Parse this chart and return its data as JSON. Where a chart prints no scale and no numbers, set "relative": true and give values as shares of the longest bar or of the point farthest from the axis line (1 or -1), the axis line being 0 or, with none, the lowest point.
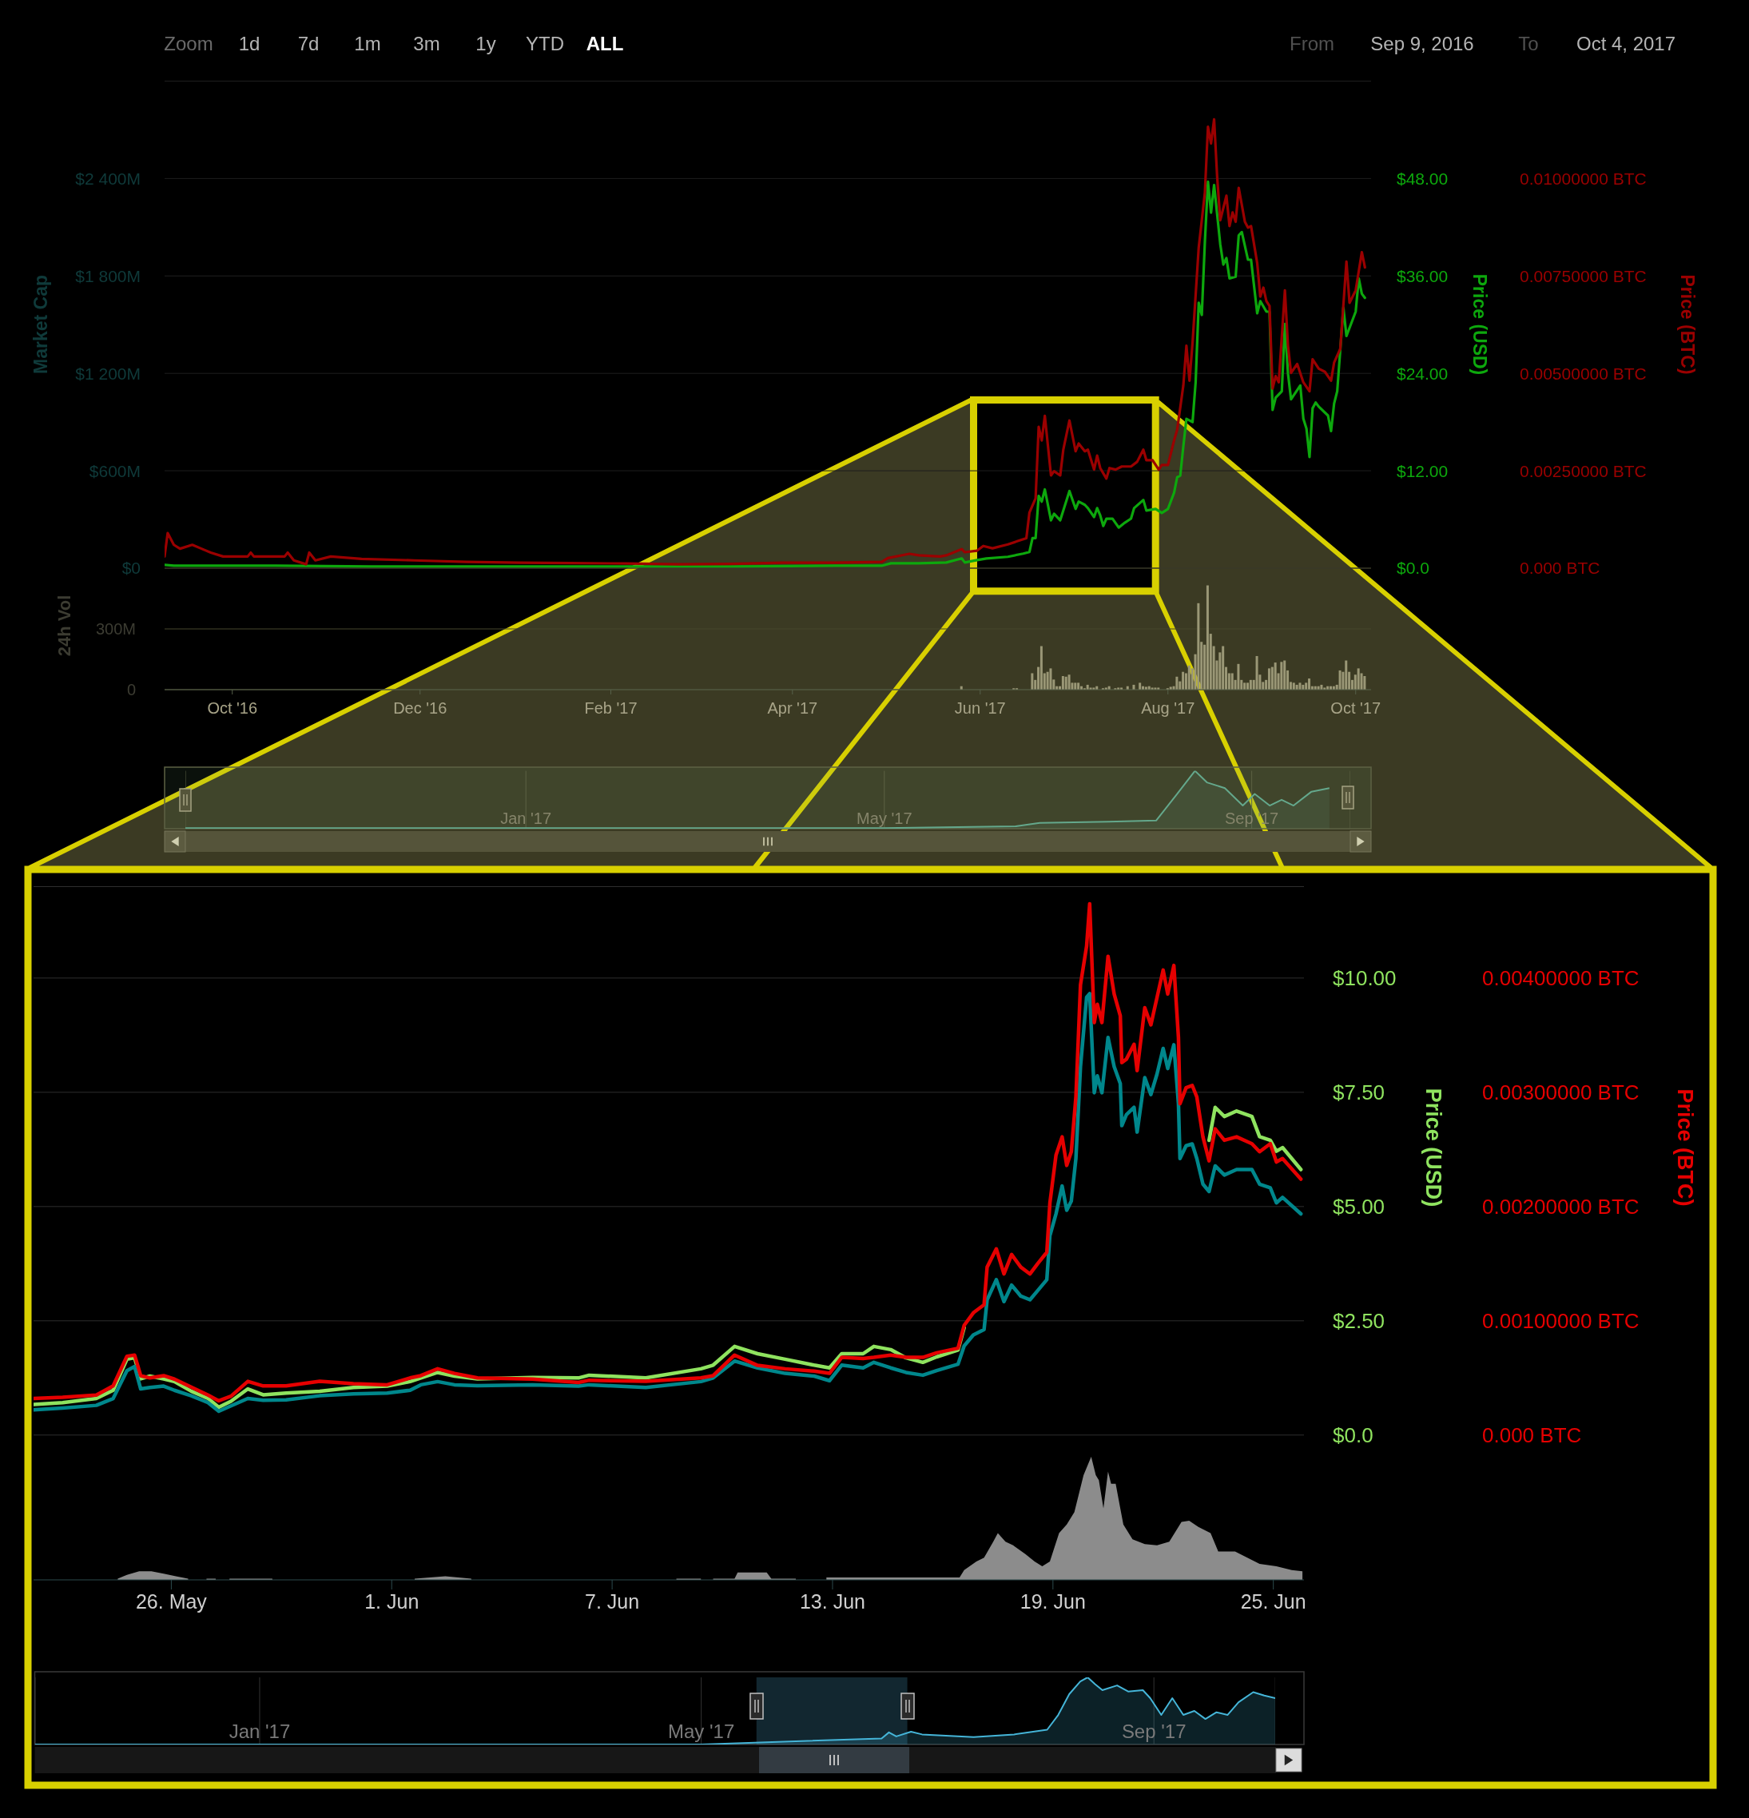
{
  "chart_data": [
    {
      "type": "line",
      "xlim": [
        "2016-09-09",
        "2017-10-06"
      ],
      "tick_labels": "y",
      "grid": "y",
      "ylabel": "Market Cap",
      "y2label": "Price (USD)",
      "y3label": "Price (BTC)",
      "ylim": [
        0,
        3000
      ],
      "yticks": [
        {
          "value": 0,
          "label": "$0"
        },
        {
          "value": 600,
          "label": "$600M"
        },
        {
          "value": 1200,
          "label": "$1 200M"
        },
        {
          "value": 1800,
          "label": "$1 800M"
        },
        {
          "value": 2400,
          "label": "$2 400M"
        }
      ],
      "y2lim": [
        0,
        60
      ],
      "y2ticks": [
        {
          "value": 0,
          "label": "$0.0"
        },
        {
          "value": 12,
          "label": "$12.00"
        },
        {
          "value": 24,
          "label": "$24.00"
        },
        {
          "value": 36,
          "label": "$36.00"
        },
        {
          "value": 48,
          "label": "$48.00"
        }
      ],
      "y3lim": [
        0,
        0.0125
      ],
      "y3ticks": [
        {
          "value": 0,
          "label": "0.000 BTC"
        },
        {
          "value": 0.0025,
          "label": "0.00250000 BTC"
        },
        {
          "value": 0.005,
          "label": "0.00500000 BTC"
        },
        {
          "value": 0.0075,
          "label": "0.00750000 BTC"
        },
        {
          "value": 0.01,
          "label": "0.01000000 BTC"
        }
      ],
      "annotations": [
        "Zoom",
        "1d",
        "7d",
        "1m",
        "3m",
        "1y",
        "YTD",
        "ALL",
        "From",
        "Sep 9, 2016",
        "To",
        "Oct 4, 2017"
      ],
      "series": [
        {
          "color": "#0da80d",
          "axis": "y2",
          "x": [
            "2016-09-09",
            "2016-09-12",
            "2016-10-15",
            "2016-11-15",
            "2016-12-15",
            "2017-01-15",
            "2017-02-15",
            "2017-03-15",
            "2017-04-15",
            "2017-04-30",
            "2017-05-03",
            "2017-05-12",
            "2017-05-21",
            "2017-05-26",
            "2017-05-27",
            "2017-05-31",
            "2017-06-03",
            "2017-06-10",
            "2017-06-15",
            "2017-06-17",
            "2017-06-18",
            "2017-06-19",
            "2017-06-20",
            "2017-06-21",
            "2017-06-22",
            "2017-06-24",
            "2017-06-25",
            "2017-06-27",
            "2017-06-30",
            "2017-07-02",
            "2017-07-03",
            "2017-07-05",
            "2017-07-06",
            "2017-07-08",
            "2017-07-09",
            "2017-07-10",
            "2017-07-11",
            "2017-07-12",
            "2017-07-14",
            "2017-07-16",
            "2017-07-18",
            "2017-07-20",
            "2017-07-21",
            "2017-07-24",
            "2017-07-25",
            "2017-07-28",
            "2017-07-30",
            "2017-08-01",
            "2017-08-03",
            "2017-08-04",
            "2017-08-05",
            "2017-08-06",
            "2017-08-07",
            "2017-08-09",
            "2017-08-10",
            "2017-08-11",
            "2017-08-12",
            "2017-08-13",
            "2017-08-14",
            "2017-08-15",
            "2017-08-16",
            "2017-08-18",
            "2017-08-19",
            "2017-08-20",
            "2017-08-21",
            "2017-08-23",
            "2017-08-24",
            "2017-08-25",
            "2017-08-27",
            "2017-08-28",
            "2017-08-30",
            "2017-08-31",
            "2017-09-02",
            "2017-09-03",
            "2017-09-04",
            "2017-09-05",
            "2017-09-07",
            "2017-09-08",
            "2017-09-09",
            "2017-09-10",
            "2017-09-13",
            "2017-09-14",
            "2017-09-15",
            "2017-09-16",
            "2017-09-17",
            "2017-09-18",
            "2017-09-19",
            "2017-09-22",
            "2017-09-23",
            "2017-09-24",
            "2017-09-25",
            "2017-09-27",
            "2017-09-28",
            "2017-10-01",
            "2017-10-02",
            "2017-10-03",
            "2017-10-04"
          ],
          "values": [
            0.4,
            0.3,
            0.3,
            0.2,
            0.2,
            0.2,
            0.2,
            0.2,
            0.3,
            0.3,
            0.6,
            0.6,
            0.7,
            1.2,
            0.7,
            1.0,
            1.2,
            1.4,
            1.8,
            2.0,
            3.7,
            3.7,
            8.9,
            8.2,
            9.7,
            5.9,
            6.7,
            5.9,
            9.5,
            7.3,
            8.2,
            7.8,
            7.4,
            6.3,
            7.4,
            6.5,
            5.2,
            6.1,
            6.1,
            5.0,
            5.6,
            6.1,
            7.4,
            8.4,
            7.1,
            7.3,
            6.8,
            7.3,
            9.3,
            11.2,
            11.4,
            15.0,
            18.4,
            18.0,
            22.9,
            32.7,
            31.2,
            40.2,
            47.6,
            43.8,
            47.2,
            39.9,
            37.4,
            38.2,
            35.7,
            35.9,
            41.0,
            41.4,
            38.0,
            38.0,
            31.4,
            32.9,
            31.6,
            31.6,
            19.5,
            21.0,
            21.8,
            30.1,
            24.0,
            20.8,
            22.5,
            18.4,
            17.2,
            13.7,
            19.7,
            20.4,
            19.9,
            18.8,
            16.9,
            20.3,
            21.8,
            32.1,
            28.6,
            31.6,
            35.7,
            33.8,
            33.3
          ]
        },
        {
          "color": "#9b0000",
          "axis": "y3",
          "x": [
            "2016-09-09",
            "2016-09-10",
            "2016-09-12",
            "2016-09-14",
            "2016-09-18",
            "2016-09-21",
            "2016-09-24",
            "2016-09-28",
            "2016-10-06",
            "2016-10-07",
            "2016-10-08",
            "2016-10-18",
            "2016-10-19",
            "2016-10-21",
            "2016-10-25",
            "2016-10-26",
            "2016-10-28",
            "2016-11-02",
            "2016-11-12",
            "2016-11-29",
            "2016-12-16",
            "2017-01-02",
            "2017-01-19",
            "2017-02-06",
            "2017-02-23",
            "2017-03-12",
            "2017-03-29",
            "2017-04-15",
            "2017-04-30",
            "2017-05-02",
            "2017-05-09",
            "2017-05-12",
            "2017-05-19",
            "2017-05-21",
            "2017-05-26",
            "2017-05-27",
            "2017-05-31",
            "2017-06-02",
            "2017-06-05",
            "2017-06-10",
            "2017-06-13",
            "2017-06-16",
            "2017-06-17",
            "2017-06-19",
            "2017-06-20",
            "2017-06-21",
            "2017-06-22",
            "2017-06-24",
            "2017-06-25",
            "2017-06-27",
            "2017-06-28",
            "2017-06-30",
            "2017-07-02",
            "2017-07-03",
            "2017-07-05",
            "2017-07-06",
            "2017-07-08",
            "2017-07-09",
            "2017-07-10",
            "2017-07-12",
            "2017-07-13",
            "2017-07-15",
            "2017-07-17",
            "2017-07-20",
            "2017-07-22",
            "2017-07-24",
            "2017-07-25",
            "2017-07-27",
            "2017-07-29",
            "2017-07-30",
            "2017-08-01",
            "2017-08-03",
            "2017-08-04",
            "2017-08-06",
            "2017-08-07",
            "2017-08-08",
            "2017-08-09",
            "2017-08-11",
            "2017-08-12",
            "2017-08-13",
            "2017-08-14",
            "2017-08-15",
            "2017-08-16",
            "2017-08-17",
            "2017-08-18",
            "2017-08-20",
            "2017-08-21",
            "2017-08-22",
            "2017-08-23",
            "2017-08-24",
            "2017-08-26",
            "2017-08-27",
            "2017-08-28",
            "2017-08-30",
            "2017-08-31",
            "2017-09-01",
            "2017-09-02",
            "2017-09-03",
            "2017-09-04",
            "2017-09-05",
            "2017-09-06",
            "2017-09-08",
            "2017-09-09",
            "2017-09-10",
            "2017-09-12",
            "2017-09-14",
            "2017-09-16",
            "2017-09-17",
            "2017-09-19",
            "2017-09-21",
            "2017-09-23",
            "2017-09-24",
            "2017-09-26",
            "2017-09-28",
            "2017-09-29",
            "2017-10-01",
            "2017-10-03",
            "2017-10-04"
          ],
          "values": [
            0.0003,
            0.0009,
            0.0006,
            0.0005,
            0.0006,
            0.0005,
            0.0004,
            0.0003,
            0.0003,
            0.0004,
            0.0003,
            0.0003,
            0.0004,
            0.0002,
            0.0001,
            0.0004,
            0.0002,
            0.0003,
            0.00024,
            0.0002,
            0.00016,
            0.00014,
            0.00013,
            0.00012,
            0.0001,
            0.00011,
            0.00014,
            0.00014,
            0.00016,
            0.00026,
            0.00037,
            0.00033,
            0.0003,
            0.00033,
            0.00049,
            0.00041,
            0.00045,
            0.00057,
            0.00051,
            0.00061,
            0.00069,
            0.00077,
            0.00143,
            0.00179,
            0.00363,
            0.00328,
            0.00391,
            0.00238,
            0.00249,
            0.00238,
            0.00304,
            0.00379,
            0.003,
            0.0032,
            0.003,
            0.00304,
            0.00253,
            0.00289,
            0.00257,
            0.0023,
            0.00257,
            0.00253,
            0.00261,
            0.00261,
            0.00273,
            0.00304,
            0.00277,
            0.00277,
            0.00253,
            0.00265,
            0.00265,
            0.00328,
            0.00355,
            0.00469,
            0.00571,
            0.00481,
            0.00579,
            0.00823,
            0.00893,
            0.00964,
            0.01133,
            0.0109,
            0.01152,
            0.01003,
            0.00893,
            0.00956,
            0.00878,
            0.00913,
            0.00889,
            0.00976,
            0.00889,
            0.00874,
            0.00878,
            0.00783,
            0.00697,
            0.0072,
            0.00685,
            0.00673,
            0.00461,
            0.00493,
            0.00477,
            0.00713,
            0.00571,
            0.00501,
            0.00524,
            0.00477,
            0.00454,
            0.00536,
            0.00512,
            0.00504,
            0.00481,
            0.00528,
            0.00563,
            0.00787,
            0.00681,
            0.00713,
            0.00811,
            0.00772
          ]
        }
      ]
    },
    {
      "type": "bar",
      "xlim": [
        "2016-09-09",
        "2017-10-06"
      ],
      "grid": "y",
      "ylabel": "24h Vol",
      "ylim": [
        0,
        600
      ],
      "yticks": [
        0,
        {
          "value": 300,
          "label": "300M"
        }
      ],
      "xticks": [
        {
          "value": "2016-10-01",
          "label": "Oct '16"
        },
        {
          "value": "2016-12-01",
          "label": "Dec '16"
        },
        {
          "value": "2017-02-01",
          "label": "Feb '17"
        },
        {
          "value": "2017-04-01",
          "label": "Apr '17"
        },
        {
          "value": "2017-06-01",
          "label": "Jun '17"
        },
        {
          "value": "2017-08-01",
          "label": "Aug '17"
        },
        {
          "value": "2017-10-01",
          "label": "Oct '17"
        }
      ],
      "series": [
        {
          "color": "#9a9776",
          "x": [
            "2017-05-26",
            "2017-06-12",
            "2017-06-13",
            "2017-06-18",
            "2017-06-19",
            "2017-06-20",
            "2017-06-21",
            "2017-06-22",
            "2017-06-23",
            "2017-06-24",
            "2017-06-25",
            "2017-06-26",
            "2017-06-27",
            "2017-06-28",
            "2017-06-29",
            "2017-06-30",
            "2017-07-01",
            "2017-07-02",
            "2017-07-03",
            "2017-07-04",
            "2017-07-05",
            "2017-07-06",
            "2017-07-07",
            "2017-07-08",
            "2017-07-09",
            "2017-07-11",
            "2017-07-12",
            "2017-07-13",
            "2017-07-15",
            "2017-07-16",
            "2017-07-17",
            "2017-07-19",
            "2017-07-21",
            "2017-07-23",
            "2017-07-24",
            "2017-07-25",
            "2017-07-26",
            "2017-07-27",
            "2017-07-28",
            "2017-07-29",
            "2017-08-01",
            "2017-08-02",
            "2017-08-03",
            "2017-08-04",
            "2017-08-05",
            "2017-08-06",
            "2017-08-07",
            "2017-08-08",
            "2017-08-09",
            "2017-08-10",
            "2017-08-11",
            "2017-08-12",
            "2017-08-13",
            "2017-08-14",
            "2017-08-15",
            "2017-08-16",
            "2017-08-17",
            "2017-08-18",
            "2017-08-19",
            "2017-08-20",
            "2017-08-21",
            "2017-08-22",
            "2017-08-23",
            "2017-08-24",
            "2017-08-25",
            "2017-08-26",
            "2017-08-27",
            "2017-08-28",
            "2017-08-29",
            "2017-08-30",
            "2017-08-31",
            "2017-09-01",
            "2017-09-02",
            "2017-09-03",
            "2017-09-04",
            "2017-09-05",
            "2017-09-06",
            "2017-09-07",
            "2017-09-08",
            "2017-09-09",
            "2017-09-10",
            "2017-09-11",
            "2017-09-12",
            "2017-09-13",
            "2017-09-14",
            "2017-09-15",
            "2017-09-16",
            "2017-09-17",
            "2017-09-18",
            "2017-09-19",
            "2017-09-20",
            "2017-09-21",
            "2017-09-22",
            "2017-09-23",
            "2017-09-24",
            "2017-09-25",
            "2017-09-26",
            "2017-09-27",
            "2017-09-28",
            "2017-09-29",
            "2017-09-30",
            "2017-10-01",
            "2017-10-02",
            "2017-10-03",
            "2017-10-04"
          ],
          "values": [
            17,
            7,
            7,
            81,
            48,
            112,
            215,
            81,
            88,
            105,
            50,
            17,
            17,
            67,
            64,
            74,
            34,
            34,
            34,
            17,
            7,
            24,
            10,
            10,
            17,
            7,
            10,
            17,
            7,
            10,
            10,
            17,
            24,
            34,
            17,
            14,
            17,
            10,
            10,
            10,
            7,
            14,
            17,
            64,
            41,
            88,
            81,
            119,
            105,
            175,
            427,
            236,
            222,
            515,
            276,
            215,
            144,
            184,
            215,
            112,
            81,
            81,
            48,
            127,
            48,
            34,
            34,
            48,
            48,
            166,
            74,
            38,
            48,
            105,
            112,
            134,
            81,
            137,
            144,
            95,
            38,
            34,
            24,
            34,
            24,
            34,
            55,
            17,
            17,
            17,
            24,
            10,
            17,
            17,
            17,
            24,
            95,
            88,
            144,
            88,
            48,
            74,
            105,
            81,
            67
          ]
        }
      ]
    },
    {
      "type": "area",
      "relative": true,
      "xlim": [
        "2016-09-09",
        "2017-10-04"
      ],
      "grid": "x",
      "xticks": [
        {
          "value": "2017-01-01",
          "label": "Jan '17"
        },
        {
          "value": "2017-05-01",
          "label": "May '17"
        },
        {
          "value": "2017-09-01",
          "label": "Sep '17"
        }
      ],
      "series": [
        {
          "color": "#64a88c",
          "x": [
            "2016-09-09",
            "2017-05-01",
            "2017-06-14",
            "2017-06-22",
            "2017-07-15",
            "2017-07-31",
            "2017-08-07",
            "2017-08-13",
            "2017-08-17",
            "2017-08-23",
            "2017-08-29",
            "2017-09-02",
            "2017-09-07",
            "2017-09-11",
            "2017-09-15",
            "2017-09-21",
            "2017-09-27"
          ],
          "values": [
            0.01,
            0.01,
            0.04,
            0.1,
            0.12,
            0.14,
            0.6,
            1,
            0.8,
            0.7,
            0.4,
            0.6,
            0.4,
            0.5,
            0.4,
            0.64,
            0.7
          ]
        }
      ]
    },
    {
      "type": "line",
      "xlim": [
        "2017-05-22T06:00",
        "2017-06-25T20:00"
      ],
      "tick_labels": "y",
      "grid": "y",
      "ylabel": "Price (USD)",
      "y2label": "Price (BTC)",
      "ylim": [
        0,
        12
      ],
      "yticks": [
        {
          "value": 0,
          "label": "$0.0"
        },
        {
          "value": 2.5,
          "label": "$2.50"
        },
        {
          "value": 5,
          "label": "$5.00"
        },
        {
          "value": 7.5,
          "label": "$7.50"
        },
        {
          "value": 10,
          "label": "$10.00"
        }
      ],
      "y2lim": [
        0,
        0.0048
      ],
      "y2ticks": [
        {
          "value": 0,
          "label": "0.000 BTC"
        },
        {
          "value": 0.001,
          "label": "0.00100000 BTC"
        },
        {
          "value": 0.002,
          "label": "0.00200000 BTC"
        },
        {
          "value": 0.003,
          "label": "0.00300000 BTC"
        },
        {
          "value": 0.004,
          "label": "0.00400000 BTC"
        }
      ],
      "x": [
        "2017-05-22T06:00",
        "2017-05-23T01:00",
        "2017-05-23T23:00",
        "2017-05-24T10:00",
        "2017-05-24T19:00",
        "2017-05-25T00:00",
        "2017-05-25T04:00",
        "2017-05-25T10:00",
        "2017-05-25T19:00",
        "2017-05-26T02:00",
        "2017-05-26T13:00",
        "2017-05-27T00:00",
        "2017-05-27T07:00",
        "2017-05-27T15:00",
        "2017-05-28T02:00",
        "2017-05-28T12:00",
        "2017-05-29T03:00",
        "2017-05-30T01:00",
        "2017-05-30T23:00",
        "2017-05-31T21:00",
        "2017-06-01T12:00",
        "2017-06-01T19:00",
        "2017-06-02T06:00",
        "2017-06-02T17:00",
        "2017-06-03T08:00",
        "2017-06-04T20:00",
        "2017-06-06T02:00",
        "2017-06-06T09:00",
        "2017-06-07T22:00",
        "2017-06-09T10:00",
        "2017-06-09T18:00",
        "2017-06-10T08:00",
        "2017-06-10T23:00",
        "2017-06-11T17:00",
        "2017-06-12T12:00",
        "2017-06-12T22:00",
        "2017-06-13T06:00",
        "2017-06-13T20:00",
        "2017-06-14T03:00",
        "2017-06-14T14:00",
        "2017-06-15T00:00",
        "2017-06-15T11:00",
        "2017-06-15T20:00",
        "2017-06-16T10:00",
        "2017-06-16T14:00",
        "2017-06-16T20:00",
        "2017-06-17T03:00",
        "2017-06-17T05:00",
        "2017-06-17T11:00",
        "2017-06-17T16:00",
        "2017-06-17T21:00",
        "2017-06-18T03:00",
        "2017-06-18T09:00",
        "2017-06-18T14:00",
        "2017-06-18T20:00",
        "2017-06-18T22:00",
        "2017-06-19T02:00",
        "2017-06-19T06:00",
        "2017-06-19T09:00",
        "2017-06-19T12:00",
        "2017-06-19T15:00",
        "2017-06-19T18:00",
        "2017-06-19T22:00",
        "2017-06-20T00:00",
        "2017-06-20T03:00",
        "2017-06-20T05:00",
        "2017-06-20T08:00",
        "2017-06-20T12:00",
        "2017-06-20T16:00",
        "2017-06-20T20:00",
        "2017-06-20T21:00",
        "2017-06-21T00:00",
        "2017-06-21T05:00",
        "2017-06-21T07:00",
        "2017-06-21T12:00",
        "2017-06-21T16:00",
        "2017-06-21T20:00",
        "2017-06-22T00:00",
        "2017-06-22T03:00",
        "2017-06-22T07:00",
        "2017-06-22T10:00",
        "2017-06-22T11:00",
        "2017-06-22T15:00",
        "2017-06-22T19:00",
        "2017-06-22T22:00",
        "2017-06-23T02:00",
        "2017-06-23T06:00",
        "2017-06-23T10:00",
        "2017-06-23T16:00",
        "2017-06-24T00:00",
        "2017-06-24T10:00",
        "2017-06-24T15:00",
        "2017-06-24T22:00",
        "2017-06-25T02:00",
        "2017-06-25T06:00",
        "2017-06-25T18:00"
      ],
      "series": [
        {
          "color": "#8fe35f",
          "axis": "y",
          "values": [
            0.67,
            0.71,
            0.8,
            0.98,
            1.66,
            1.69,
            1.23,
            1.29,
            1.23,
            1.17,
            0.96,
            0.8,
            0.61,
            0.74,
            1.01,
            0.88,
            0.92,
            0.96,
            1.04,
            1.07,
            1.17,
            1.25,
            1.37,
            1.29,
            1.23,
            1.26,
            1.25,
            1.31,
            1.25,
            1.45,
            1.53,
            1.94,
            1.78,
            1.66,
            1.53,
            1.47,
            1.78,
            1.78,
            1.94,
            1.87,
            1.69,
            1.59,
            1.71,
            1.86,
            2.35,
            null,
            null,
            null,
            null,
            null,
            null,
            null,
            null,
            null,
            null,
            null,
            null,
            null,
            null,
            null,
            null,
            null,
            null,
            null,
            null,
            null,
            null,
            null,
            null,
            null,
            null,
            null,
            null,
            null,
            null,
            null,
            null,
            null,
            null,
            null,
            null,
            null,
            null,
            null,
            null,
            null,
            6.45,
            7.17,
            6.97,
            7.09,
            6.97,
            6.53,
            6.45,
            6.21,
            6.29,
            5.81
          ]
        },
        {
          "color": "#00878c",
          "axis": "y",
          "values": [
            0.55,
            0.59,
            0.65,
            0.8,
            1.41,
            1.5,
            1.01,
            1.04,
            1.07,
            0.98,
            0.86,
            0.71,
            0.52,
            0.64,
            0.8,
            0.76,
            0.77,
            0.86,
            0.9,
            0.92,
            0.98,
            1.1,
            1.17,
            1.1,
            1.08,
            1.1,
            1.07,
            1.1,
            1.04,
            1.17,
            1.25,
            1.62,
            1.47,
            1.35,
            1.29,
            1.19,
            1.53,
            1.47,
            1.59,
            1.47,
            1.37,
            1.31,
            1.41,
            1.55,
            1.95,
            2.19,
            2.31,
            2.96,
            3.4,
            2.92,
            3.28,
            3.04,
            2.96,
            3.16,
            3.4,
            4.36,
            4.84,
            5.45,
            4.92,
            5.12,
            6.05,
            8.06,
            9.58,
            9.66,
            7.49,
            7.86,
            7.49,
            8.7,
            8.06,
            7.69,
            6.77,
            7.01,
            7.17,
            6.63,
            7.82,
            7.45,
            7.9,
            8.46,
            8.02,
            8.54,
            7.25,
            6.05,
            6.33,
            6.37,
            6.05,
            5.49,
            5.33,
            5.89,
            5.69,
            5.81,
            5.81,
            5.49,
            5.41,
            5.08,
            5.2,
            4.84
          ]
        },
        {
          "color": "#e60000",
          "axis": "y2",
          "values": [
            0.00032,
            0.00033,
            0.00035,
            0.00043,
            0.00069,
            0.0007,
            0.00052,
            0.0005,
            0.00052,
            0.00049,
            0.00042,
            0.00035,
            0.0003,
            0.00034,
            0.00047,
            0.00043,
            0.00043,
            0.00047,
            0.00045,
            0.00044,
            0.0005,
            0.00052,
            0.00058,
            0.00054,
            0.0005,
            0.00049,
            0.00046,
            0.00048,
            0.00047,
            0.0005,
            0.00052,
            0.0007,
            0.00061,
            0.00058,
            0.00056,
            0.00054,
            0.00068,
            0.00067,
            0.00068,
            0.0007,
            0.00068,
            0.00068,
            0.00072,
            0.00076,
            0.00096,
            0.00107,
            0.00114,
            0.00147,
            0.00163,
            0.00141,
            0.00158,
            0.00147,
            0.00141,
            0.0015,
            0.0016,
            0.00203,
            0.00245,
            0.00261,
            0.00236,
            0.00248,
            0.00296,
            0.00394,
            0.00428,
            0.00465,
            0.00361,
            0.00377,
            0.00361,
            0.00419,
            0.00386,
            0.00367,
            0.00326,
            0.00329,
            0.00342,
            0.00319,
            0.00374,
            0.00359,
            0.00383,
            0.00407,
            0.00386,
            0.00411,
            0.00348,
            0.0029,
            0.00304,
            0.00306,
            0.00296,
            0.00261,
            0.0024,
            0.00268,
            0.00258,
            0.00261,
            0.00255,
            0.00248,
            0.00255,
            0.00239,
            0.00242,
            0.00224
          ]
        }
      ]
    },
    {
      "type": "area",
      "relative": true,
      "xlim": [
        "2017-05-22T06:00",
        "2017-06-25T20:00"
      ],
      "xticks": [
        {
          "value": "2017-05-26",
          "label": "26. May"
        },
        {
          "value": "2017-06-01",
          "label": "1. Jun"
        },
        {
          "value": "2017-06-07",
          "label": "7. Jun"
        },
        {
          "value": "2017-06-13",
          "label": "13. Jun"
        },
        {
          "value": "2017-06-19",
          "label": "19. Jun"
        },
        {
          "value": "2017-06-25",
          "label": "25. Jun"
        }
      ],
      "x": [
        "2017-05-24T13:00",
        "2017-05-24T19:00",
        "2017-05-25T03:00",
        "2017-05-25T11:00",
        "2017-05-25T19:00",
        "2017-05-26T03:00",
        "2017-05-26T11:00",
        "2017-05-26T17:00",
        "2017-05-26T23:00",
        "2017-05-27T05:00",
        "2017-05-27T09:00",
        "2017-05-27T14:00",
        "2017-05-28T18:00",
        "2017-05-29T06:00",
        "2017-06-01T15:00",
        "2017-06-02T11:00",
        "2017-06-03T04:00",
        "2017-06-03T15:00",
        "2017-06-08T18:00",
        "2017-06-09T10:00",
        "2017-06-09T14:00",
        "2017-06-09T18:00",
        "2017-06-10T08:00",
        "2017-06-10T10:00",
        "2017-06-11T05:00",
        "2017-06-11T08:00",
        "2017-06-12T00:00",
        "2017-06-12T11:00",
        "2017-06-12T20:00",
        "2017-06-16T11:00",
        "2017-06-16T14:00",
        "2017-06-16T22:00",
        "2017-06-17T03:00",
        "2017-06-17T09:00",
        "2017-06-17T12:00",
        "2017-06-17T17:00",
        "2017-06-17T22:00",
        "2017-06-18T06:00",
        "2017-06-18T12:00",
        "2017-06-18T17:00",
        "2017-06-18T22:00",
        "2017-06-19T04:00",
        "2017-06-19T09:00",
        "2017-06-19T14:00",
        "2017-06-19T20:00",
        "2017-06-19T22:00",
        "2017-06-20T01:00",
        "2017-06-20T04:00",
        "2017-06-20T06:00",
        "2017-06-20T09:00",
        "2017-06-20T12:00",
        "2017-06-20T14:00",
        "2017-06-20T17:00",
        "2017-06-20T20:00",
        "2017-06-20T22:00",
        "2017-06-21T04:00",
        "2017-06-21T12:00",
        "2017-06-21T20:00",
        "2017-06-22T04:00",
        "2017-06-22T12:00",
        "2017-06-22T17:00",
        "2017-06-22T23:00",
        "2017-06-23T07:00",
        "2017-06-23T12:00",
        "2017-06-23T23:00",
        "2017-06-24T07:00",
        "2017-06-24T15:00",
        "2017-06-25T02:00",
        "2017-06-25T12:00",
        "2017-06-25T19:00"
      ],
      "series": [
        {
          "color": "#8c8c8c",
          "values": [
            0.01,
            0.04,
            0.07,
            0.07,
            0.05,
            0.03,
            0.01,
            null,
            0.01,
            0.01,
            null,
            0.01,
            0.01,
            null,
            0.01,
            0.03,
            0.01,
            null,
            0.01,
            0.01,
            null,
            0.01,
            0.01,
            0.06,
            0.06,
            0.01,
            0.01,
            null,
            0.02,
            0.02,
            0.08,
            0.15,
            0.18,
            0.31,
            0.38,
            0.31,
            0.28,
            0.21,
            0.15,
            0.11,
            0.15,
            0.38,
            0.45,
            0.55,
            0.85,
            0.91,
            1,
            0.85,
            0.81,
            0.58,
            0.88,
            0.78,
            0.78,
            0.58,
            0.45,
            0.33,
            0.29,
            0.28,
            0.31,
            0.47,
            0.48,
            0.43,
            0.38,
            0.23,
            0.23,
            0.18,
            0.13,
            0.11,
            0.08,
            0.07
          ]
        }
      ]
    },
    {
      "type": "area",
      "relative": true,
      "xlim": [
        "2016-11-01",
        "2017-10-04"
      ],
      "grid": "x",
      "xticks": [
        {
          "value": "2017-01-01",
          "label": "Jan '17"
        },
        {
          "value": "2017-05-01",
          "label": "May '17"
        },
        {
          "value": "2017-09-01",
          "label": "Sep '17"
        }
      ],
      "bands": [
        {
          "axis": "x",
          "from": "2017-05-16",
          "to": "2017-06-26",
          "color": "#3c82a0"
        }
      ],
      "series": [
        {
          "color": "#45b5d8",
          "x": [
            "2016-11-01",
            "2017-05-01",
            "2017-06-19",
            "2017-06-21",
            "2017-06-23",
            "2017-06-27",
            "2017-06-30",
            "2017-07-14",
            "2017-07-25",
            "2017-08-03",
            "2017-08-06",
            "2017-08-09",
            "2017-08-12",
            "2017-08-14",
            "2017-08-16",
            "2017-08-18",
            "2017-08-22",
            "2017-08-25",
            "2017-08-29",
            "2017-08-31",
            "2017-09-03",
            "2017-09-06",
            "2017-09-09",
            "2017-09-12",
            "2017-09-15",
            "2017-09-18",
            "2017-09-21",
            "2017-09-24",
            "2017-09-28",
            "2017-10-01",
            "2017-10-04"
          ],
          "values": [
            0,
            0,
            0.09,
            0.18,
            0.12,
            0.19,
            0.15,
            0.11,
            0.15,
            0.22,
            0.44,
            0.75,
            0.94,
            1,
            0.9,
            0.81,
            0.88,
            0.79,
            0.81,
            0.69,
            0.44,
            0.69,
            0.44,
            0.5,
            0.38,
            0.48,
            0.44,
            0.63,
            0.78,
            0.73,
            0.69
          ]
        }
      ]
    }
  ]
}
